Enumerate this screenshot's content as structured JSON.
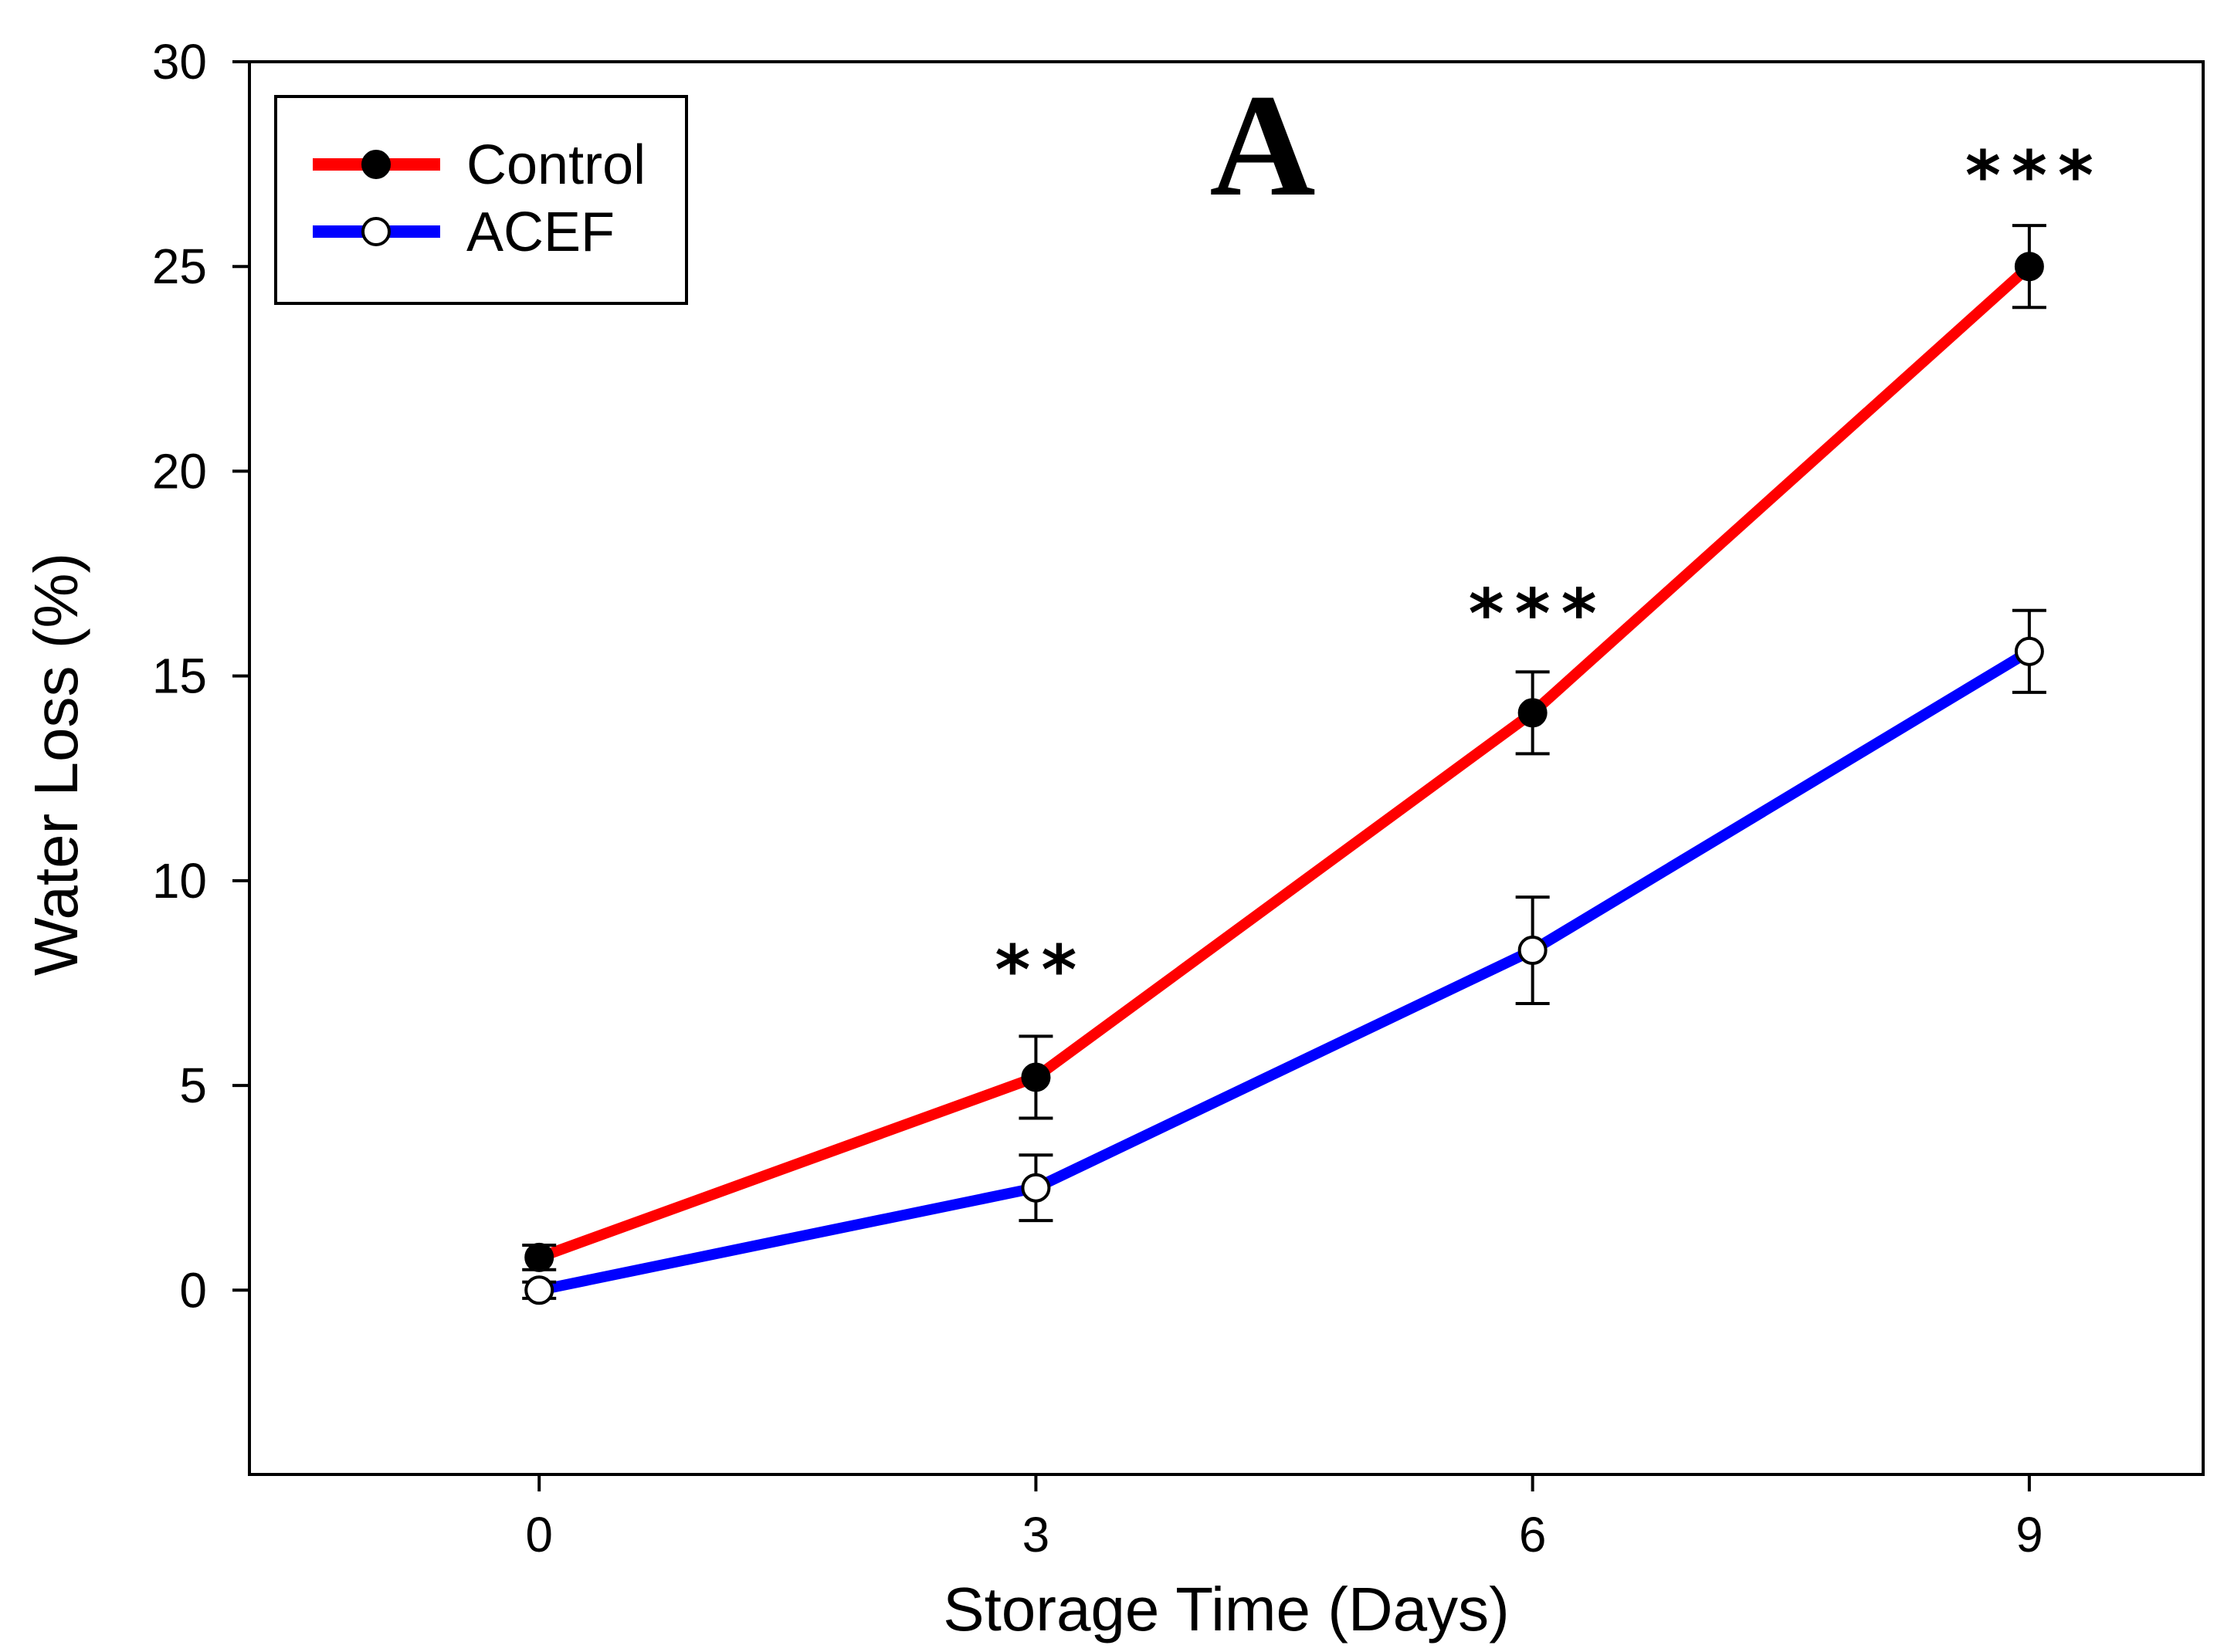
{
  "chart_data": {
    "type": "line",
    "title": "",
    "panel_label": "A",
    "xlabel": "Storage Time (Days)",
    "ylabel": "Water Loss (%)",
    "x": [
      0,
      3,
      6,
      9
    ],
    "x_ticks": [
      "0",
      "3",
      "6",
      "9"
    ],
    "xlim": [
      -1.75,
      10.05
    ],
    "y_ticks": [
      "0",
      "5",
      "10",
      "15",
      "20",
      "25",
      "30"
    ],
    "y_tick_values": [
      0,
      5,
      10,
      15,
      20,
      25,
      30
    ],
    "ylim": [
      -4.5,
      30
    ],
    "grid": false,
    "legend_position": "top-left",
    "series": [
      {
        "name": "Control",
        "color": "#ff0000",
        "marker": "filled-circle",
        "values": [
          0.8,
          5.2,
          14.1,
          25.0
        ],
        "errors": [
          0.3,
          1.0,
          1.0,
          1.0
        ]
      },
      {
        "name": "ACEF",
        "color": "#0000ff",
        "marker": "open-circle",
        "values": [
          0.0,
          2.5,
          8.3,
          15.6
        ],
        "errors": [
          0.2,
          0.8,
          1.3,
          1.0
        ]
      }
    ],
    "annotations": [
      {
        "x": 3,
        "y": 8.0,
        "text": "**"
      },
      {
        "x": 6,
        "y": 16.7,
        "text": "***"
      },
      {
        "x": 9,
        "y": 27.4,
        "text": "***"
      }
    ]
  }
}
